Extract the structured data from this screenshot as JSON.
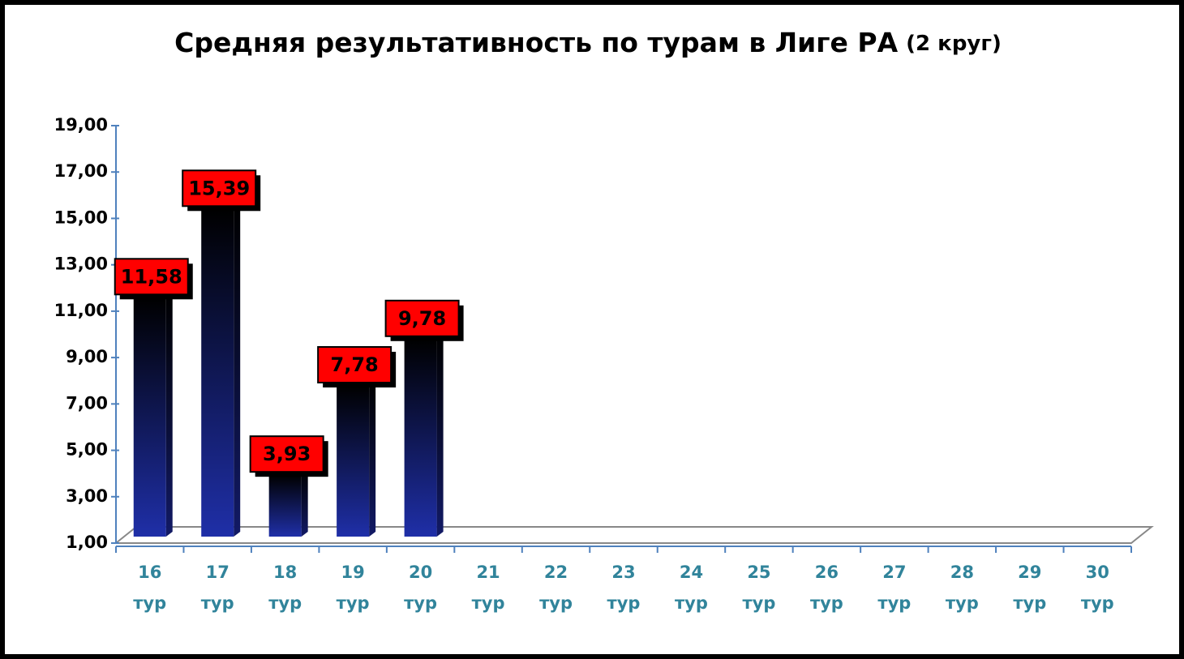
{
  "chart_data": {
    "type": "bar",
    "title": "Средняя результативность по турам в Лиге РА",
    "title_note": "(2 круг)",
    "categories": [
      "16 тур",
      "17 тур",
      "18 тур",
      "19 тур",
      "20 тур",
      "21 тур",
      "22 тур",
      "23 тур",
      "24 тур",
      "25 тур",
      "26 тур",
      "27 тур",
      "28 тур",
      "29 тур",
      "30 тур"
    ],
    "values": [
      11.58,
      15.39,
      3.93,
      7.78,
      9.78,
      null,
      null,
      null,
      null,
      null,
      null,
      null,
      null,
      null,
      null
    ],
    "value_labels": [
      "11,58",
      "15,39",
      "3,93",
      "7,78",
      "9,78",
      null,
      null,
      null,
      null,
      null,
      null,
      null,
      null,
      null,
      null
    ],
    "color": "#1f2fa8",
    "label_color": "#ff0000",
    "ylim": [
      1,
      19
    ],
    "yticks": [
      {
        "value": 1,
        "label": "1,00"
      },
      {
        "value": 3,
        "label": "3,00"
      },
      {
        "value": 5,
        "label": "5,00"
      },
      {
        "value": 7,
        "label": "7,00"
      },
      {
        "value": 9,
        "label": "9,00"
      },
      {
        "value": 11,
        "label": "11,00"
      },
      {
        "value": 13,
        "label": "13,00"
      },
      {
        "value": 15,
        "label": "15,00"
      },
      {
        "value": 17,
        "label": "17,00"
      },
      {
        "value": 19,
        "label": "19,00"
      }
    ]
  }
}
